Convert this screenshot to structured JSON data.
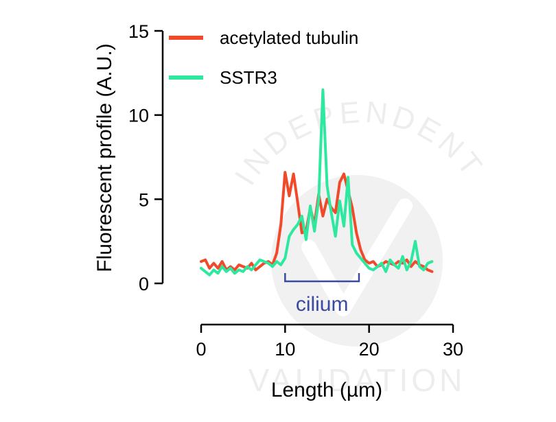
{
  "chart_data": {
    "type": "line",
    "xlabel": "Length (µm)",
    "ylabel": "Fluorescent profile (A.U.)",
    "xlim": [
      0,
      30
    ],
    "ylim": [
      0,
      15
    ],
    "x_ticks": [
      "0",
      "10",
      "20",
      "30"
    ],
    "y_ticks": [
      "0",
      "5",
      "10",
      "15"
    ],
    "legend_position": "top-left",
    "grid": false,
    "annotation": {
      "text": "cilium",
      "x_start": 10,
      "x_end": 18.8
    },
    "watermark": {
      "top": "INDEPENDENT",
      "bottom": "VALIDATION"
    },
    "series": [
      {
        "name": "acetylated tubulin",
        "color": "#f04a2a",
        "x": [
          0,
          0.5,
          1,
          1.5,
          2,
          2.5,
          3,
          3.5,
          4,
          4.5,
          5,
          5.5,
          6,
          6.5,
          7,
          7.5,
          8,
          8.5,
          9,
          9.5,
          10,
          10.5,
          11,
          11.5,
          12,
          12.5,
          13,
          13.5,
          14,
          14.5,
          15,
          15.5,
          16,
          16.5,
          17,
          17.5,
          18,
          18.5,
          19,
          19.5,
          20,
          20.5,
          21,
          21.5,
          22,
          22.5,
          23,
          23.5,
          24,
          24.5,
          25,
          25.5,
          26,
          26.5,
          27,
          27.5
        ],
        "values": [
          1.3,
          1.4,
          0.9,
          1.2,
          0.9,
          1.3,
          0.8,
          1.0,
          0.8,
          1.1,
          1.0,
          0.9,
          1.2,
          0.8,
          1.0,
          1.2,
          1.3,
          1.1,
          1.8,
          3.5,
          6.6,
          5.2,
          6.5,
          4.8,
          3.0,
          3.1,
          4.5,
          3.5,
          5.3,
          4.0,
          5.0,
          4.5,
          4.2,
          6.0,
          6.5,
          5.5,
          4.5,
          3.0,
          2.0,
          1.4,
          1.2,
          1.3,
          1.0,
          1.1,
          1.3,
          1.2,
          1.1,
          1.3,
          1.2,
          1.4,
          1.0,
          1.3,
          1.1,
          1.0,
          0.8,
          0.7
        ]
      },
      {
        "name": "SSTR3",
        "color": "#2fe8a0",
        "x": [
          0,
          0.5,
          1,
          1.5,
          2,
          2.5,
          3,
          3.5,
          4,
          4.5,
          5,
          5.5,
          6,
          6.5,
          7,
          7.5,
          8,
          8.5,
          9,
          9.5,
          10,
          10.5,
          11,
          11.5,
          12,
          12.5,
          13,
          13.5,
          14,
          14.5,
          15,
          15.5,
          16,
          16.5,
          17,
          17.5,
          18,
          18.5,
          19,
          19.5,
          20,
          20.5,
          21,
          21.5,
          22,
          22.5,
          23,
          23.5,
          24,
          24.5,
          25,
          25.5,
          26,
          26.5,
          27,
          27.5
        ],
        "values": [
          0.9,
          0.7,
          0.5,
          0.8,
          0.6,
          1.0,
          0.7,
          0.9,
          0.6,
          0.8,
          0.7,
          1.0,
          0.8,
          1.1,
          1.4,
          1.3,
          1.2,
          1.0,
          1.3,
          1.1,
          1.5,
          2.8,
          3.2,
          3.5,
          4.0,
          2.6,
          4.6,
          3.1,
          5.0,
          11.5,
          5.8,
          4.2,
          2.8,
          4.9,
          3.4,
          6.3,
          2.3,
          1.8,
          1.5,
          1.2,
          0.9,
          0.8,
          1.0,
          1.2,
          0.7,
          1.4,
          1.1,
          0.9,
          1.6,
          0.8,
          1.3,
          2.5,
          1.0,
          0.8,
          1.2,
          1.3
        ]
      }
    ]
  }
}
